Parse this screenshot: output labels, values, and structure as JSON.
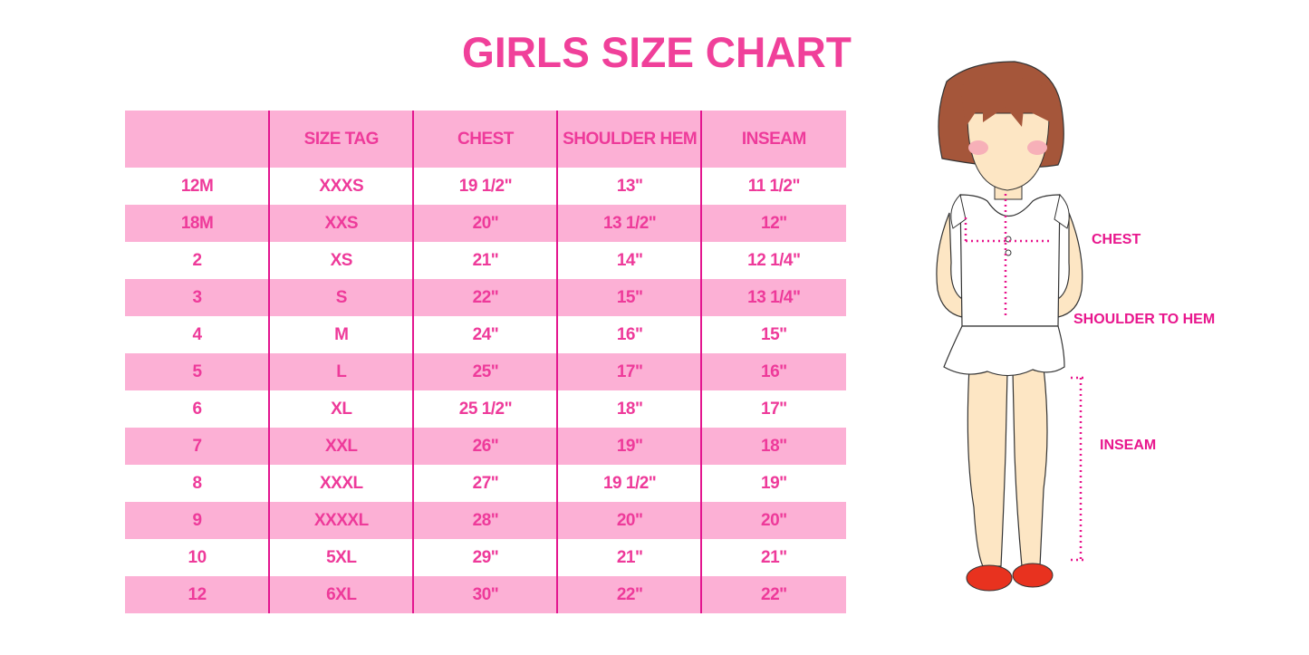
{
  "title": "GIRLS SIZE CHART",
  "colors": {
    "accent": "#f0409a",
    "row_pink": "#fcb0d5",
    "divider": "#e3168f"
  },
  "table": {
    "headers": [
      "",
      "SIZE TAG",
      "CHEST",
      "SHOULDER HEM",
      "INSEAM"
    ],
    "rows": [
      [
        "12M",
        "XXXS",
        "19 1/2\"",
        "13\"",
        "11 1/2\""
      ],
      [
        "18M",
        "XXS",
        "20\"",
        "13 1/2\"",
        "12\""
      ],
      [
        "2",
        "XS",
        "21\"",
        "14\"",
        "12 1/4\""
      ],
      [
        "3",
        "S",
        "22\"",
        "15\"",
        "13 1/4\""
      ],
      [
        "4",
        "M",
        "24\"",
        "16\"",
        "15\""
      ],
      [
        "5",
        "L",
        "25\"",
        "17\"",
        "16\""
      ],
      [
        "6",
        "XL",
        "25 1/2\"",
        "18\"",
        "17\""
      ],
      [
        "7",
        "XXL",
        "26\"",
        "19\"",
        "18\""
      ],
      [
        "8",
        "XXXL",
        "27\"",
        "19 1/2\"",
        "19\""
      ],
      [
        "9",
        "XXXXL",
        "28\"",
        "20\"",
        "20\""
      ],
      [
        "10",
        "5XL",
        "29\"",
        "21\"",
        "21\""
      ],
      [
        "12",
        "6XL",
        "30\"",
        "22\"",
        "22\""
      ]
    ]
  },
  "figure": {
    "labels": {
      "chest": "CHEST",
      "shoulder_to_hem": "SHOULDER TO HEM",
      "inseam": "INSEAM"
    }
  }
}
